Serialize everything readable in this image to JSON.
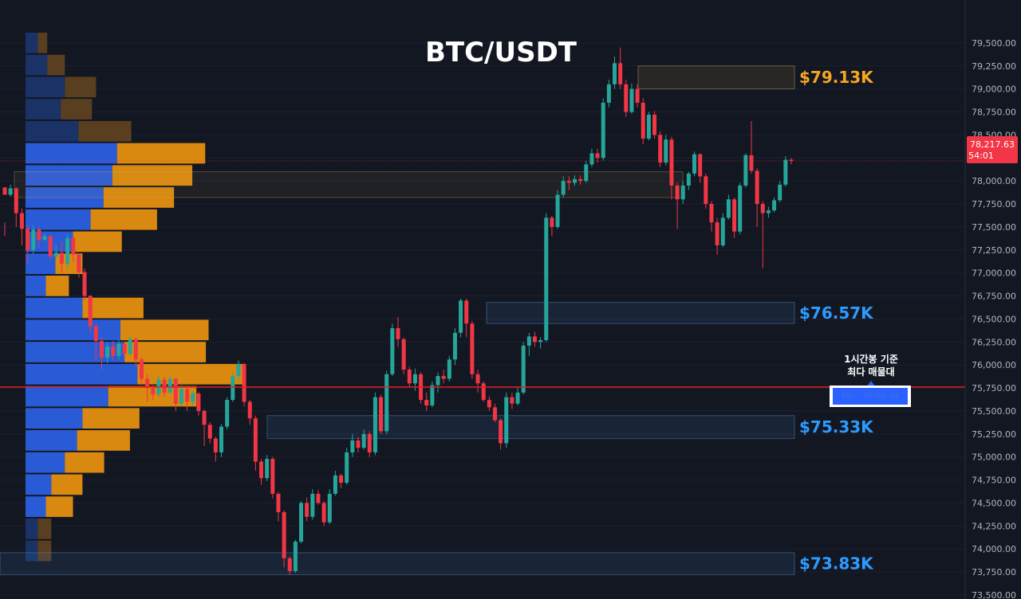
{
  "chart_data": {
    "type": "candlestick",
    "title": "BTC/USDT",
    "timeframe_note": [
      "1시간봉 기준",
      "최다 매물대"
    ],
    "poc_label": "POC: 75760.24",
    "poc_price": 75760,
    "current_price_label": "78,217.63",
    "countdown_label": "54:01",
    "current_price": 78217.63,
    "ylim": [
      73500,
      79750
    ],
    "y_ticks": [
      "79,500.00",
      "79,250.00",
      "79,000.00",
      "78,750.00",
      "78,500.00",
      "78,250.00",
      "78,000.00",
      "77,750.00",
      "77,500.00",
      "77,250.00",
      "77,000.00",
      "76,750.00",
      "76,500.00",
      "76,250.00",
      "76,000.00",
      "75,750.00",
      "75,500.00",
      "75,250.00",
      "75,000.00",
      "74,750.00",
      "74,500.00",
      "74,250.00",
      "74,000.00",
      "73,750.00",
      "73,500.00"
    ],
    "levels": [
      {
        "label": "$79.13K",
        "color": "#f5a623",
        "top": 79250,
        "bottom": 79000
      },
      {
        "label": "$76.57K",
        "color": "#2e9bff",
        "top": 76680,
        "bottom": 76450
      },
      {
        "label": "$75.33K",
        "color": "#2e9bff",
        "top": 75450,
        "bottom": 75200
      },
      {
        "label": "$73.83K",
        "color": "#2e9bff",
        "top": 73960,
        "bottom": 73720
      }
    ],
    "volume_profile": {
      "bin_size": 240,
      "bins_top_down": [
        {
          "price": 79500,
          "buy": 18,
          "sell": 14
        },
        {
          "price": 79260,
          "buy": 32,
          "sell": 26
        },
        {
          "price": 79020,
          "buy": 58,
          "sell": 46
        },
        {
          "price": 78780,
          "buy": 52,
          "sell": 46
        },
        {
          "price": 78540,
          "buy": 78,
          "sell": 78
        },
        {
          "price": 78300,
          "buy": 135,
          "sell": 130
        },
        {
          "price": 78060,
          "buy": 128,
          "sell": 118
        },
        {
          "price": 77820,
          "buy": 115,
          "sell": 104
        },
        {
          "price": 77580,
          "buy": 96,
          "sell": 98
        },
        {
          "price": 77340,
          "buy": 70,
          "sell": 72
        },
        {
          "price": 77100,
          "buy": 44,
          "sell": 40
        },
        {
          "price": 76860,
          "buy": 30,
          "sell": 34
        },
        {
          "price": 76620,
          "buy": 84,
          "sell": 90
        },
        {
          "price": 76380,
          "buy": 140,
          "sell": 130
        },
        {
          "price": 76140,
          "buy": 146,
          "sell": 120
        },
        {
          "price": 75900,
          "buy": 165,
          "sell": 158
        },
        {
          "price": 75660,
          "buy": 122,
          "sell": 130
        },
        {
          "price": 75420,
          "buy": 84,
          "sell": 84
        },
        {
          "price": 75180,
          "buy": 76,
          "sell": 78
        },
        {
          "price": 74940,
          "buy": 58,
          "sell": 58
        },
        {
          "price": 74700,
          "buy": 38,
          "sell": 46
        },
        {
          "price": 74460,
          "buy": 30,
          "sell": 40
        },
        {
          "price": 74220,
          "buy": 18,
          "sell": 20
        },
        {
          "price": 73980,
          "buy": 18,
          "sell": 20
        }
      ]
    },
    "candles": [
      [
        77930,
        77850,
        77550,
        77400
      ],
      [
        77850,
        77920,
        77960,
        77830
      ],
      [
        77920,
        77650,
        77930,
        77500
      ],
      [
        77650,
        77480,
        77700,
        77300
      ],
      [
        77480,
        77250,
        77520,
        77100
      ],
      [
        77250,
        77470,
        77520,
        77210
      ],
      [
        77470,
        77360,
        77500,
        77280
      ],
      [
        77360,
        77400,
        77430,
        77350
      ],
      [
        77400,
        77180,
        77410,
        77150
      ],
      [
        77180,
        77220,
        77300,
        77160
      ],
      [
        77220,
        77100,
        77340,
        77000
      ],
      [
        77100,
        77380,
        77420,
        77050
      ],
      [
        77380,
        77200,
        77390,
        77120
      ],
      [
        77200,
        77010,
        77210,
        76950
      ],
      [
        77010,
        76750,
        77050,
        76700
      ],
      [
        76750,
        76420,
        76760,
        76350
      ],
      [
        76420,
        76260,
        76450,
        76050
      ],
      [
        76260,
        76080,
        76300,
        75950
      ],
      [
        76080,
        76200,
        76250,
        76020
      ],
      [
        76200,
        76100,
        76260,
        76050
      ],
      [
        76100,
        76230,
        76270,
        76060
      ],
      [
        76230,
        76120,
        76250,
        76080
      ],
      [
        76120,
        76280,
        76310,
        76100
      ],
      [
        76280,
        76060,
        76300,
        75980
      ],
      [
        76060,
        75850,
        76080,
        75800
      ],
      [
        75850,
        75750,
        75900,
        75600
      ],
      [
        75750,
        75680,
        75780,
        75620
      ],
      [
        75680,
        75840,
        75880,
        75650
      ],
      [
        75840,
        75700,
        75870,
        75650
      ],
      [
        75700,
        75850,
        75880,
        75690
      ],
      [
        75850,
        75580,
        75860,
        75500
      ],
      [
        75580,
        75740,
        75780,
        75550
      ],
      [
        75740,
        75600,
        75760,
        75500
      ],
      [
        75600,
        75690,
        75720,
        75560
      ],
      [
        75690,
        75500,
        75710,
        75450
      ],
      [
        75500,
        75350,
        75520,
        75120
      ],
      [
        75350,
        75200,
        75380,
        75150
      ],
      [
        75200,
        75050,
        75220,
        74950
      ],
      [
        75050,
        75330,
        75360,
        75000
      ],
      [
        75330,
        75620,
        75650,
        75300
      ],
      [
        75620,
        75880,
        75920,
        75600
      ],
      [
        75880,
        76010,
        76050,
        75820
      ],
      [
        76010,
        75600,
        76020,
        75550
      ],
      [
        75600,
        75420,
        75620,
        75350
      ],
      [
        75420,
        74950,
        75450,
        74850
      ],
      [
        74950,
        74770,
        74980,
        74700
      ],
      [
        74770,
        74980,
        75020,
        74740
      ],
      [
        74980,
        74600,
        75000,
        74550
      ],
      [
        74600,
        74400,
        74620,
        74300
      ],
      [
        74400,
        73900,
        74420,
        73800
      ],
      [
        73900,
        73760,
        73920,
        73720
      ],
      [
        73760,
        74080,
        74100,
        73740
      ],
      [
        74080,
        74500,
        74520,
        74060
      ],
      [
        74500,
        74350,
        74560,
        74300
      ],
      [
        74350,
        74600,
        74650,
        74320
      ],
      [
        74600,
        74500,
        74640,
        74480
      ],
      [
        74500,
        74290,
        74520,
        74250
      ],
      [
        74290,
        74600,
        74650,
        74270
      ],
      [
        74600,
        74800,
        74850,
        74580
      ],
      [
        74800,
        74720,
        74820,
        74660
      ],
      [
        74720,
        75050,
        75100,
        74700
      ],
      [
        75050,
        75180,
        75250,
        75000
      ],
      [
        75180,
        75100,
        75220,
        75050
      ],
      [
        75100,
        75250,
        75300,
        75080
      ],
      [
        75250,
        75050,
        75280,
        75000
      ],
      [
        75050,
        75650,
        75700,
        75020
      ],
      [
        75650,
        75280,
        75680,
        75250
      ],
      [
        75280,
        75900,
        75940,
        75250
      ],
      [
        75900,
        76400,
        76450,
        75880
      ],
      [
        76400,
        76280,
        76520,
        76200
      ],
      [
        76280,
        75950,
        76300,
        75900
      ],
      [
        75950,
        75800,
        75980,
        75760
      ],
      [
        75800,
        75900,
        75960,
        75720
      ],
      [
        75900,
        75620,
        75920,
        75580
      ],
      [
        75620,
        75560,
        75700,
        75500
      ],
      [
        75560,
        75780,
        75820,
        75540
      ],
      [
        75780,
        75880,
        75920,
        75700
      ],
      [
        75880,
        75850,
        75950,
        75800
      ],
      [
        75850,
        76060,
        76100,
        75820
      ],
      [
        76060,
        76350,
        76400,
        76000
      ],
      [
        76350,
        76700,
        76720,
        76300
      ],
      [
        76700,
        76450,
        76720,
        76300
      ],
      [
        76450,
        75900,
        76480,
        75850
      ],
      [
        75900,
        75800,
        75950,
        75700
      ],
      [
        75800,
        75620,
        75820,
        75600
      ],
      [
        75620,
        75540,
        75660,
        75500
      ],
      [
        75540,
        75400,
        75580,
        75380
      ],
      [
        75400,
        75150,
        75420,
        75080
      ],
      [
        75150,
        75650,
        75700,
        75100
      ],
      [
        75650,
        75580,
        75700,
        75520
      ],
      [
        75580,
        75700,
        75760,
        75560
      ],
      [
        75700,
        76210,
        76250,
        75680
      ],
      [
        76210,
        76310,
        76350,
        76100
      ],
      [
        76310,
        76250,
        76360,
        76200
      ],
      [
        76250,
        76270,
        76300,
        76180
      ],
      [
        76270,
        77600,
        77650,
        76250
      ],
      [
        77600,
        77500,
        77620,
        77400
      ],
      [
        77500,
        77850,
        77900,
        77480
      ],
      [
        77850,
        78000,
        78050,
        77820
      ],
      [
        78000,
        77980,
        78050,
        77900
      ],
      [
        77980,
        78020,
        78060,
        77950
      ],
      [
        78020,
        78000,
        78060,
        77960
      ],
      [
        78000,
        78180,
        78220,
        77980
      ],
      [
        78180,
        78300,
        78350,
        78150
      ],
      [
        78300,
        78250,
        78350,
        78200
      ],
      [
        78250,
        78850,
        78900,
        78220
      ],
      [
        78850,
        79050,
        79100,
        78800
      ],
      [
        79050,
        79280,
        79350,
        79000
      ],
      [
        79280,
        79050,
        79450,
        79000
      ],
      [
        79050,
        78750,
        79100,
        78700
      ],
      [
        78750,
        79000,
        79060,
        78730
      ],
      [
        79000,
        78850,
        79050,
        78800
      ],
      [
        78850,
        78460,
        78900,
        78400
      ],
      [
        78460,
        78720,
        78750,
        78440
      ],
      [
        78720,
        78500,
        78760,
        78460
      ],
      [
        78500,
        78200,
        78540,
        78150
      ],
      [
        78200,
        78450,
        78500,
        78170
      ],
      [
        78450,
        77950,
        78480,
        77800
      ],
      [
        77950,
        77800,
        77980,
        77480
      ],
      [
        77800,
        77950,
        78000,
        77750
      ],
      [
        77950,
        78080,
        78100,
        77900
      ],
      [
        78080,
        78290,
        78320,
        78050
      ],
      [
        78290,
        78050,
        78300,
        77980
      ],
      [
        78050,
        77750,
        78080,
        77700
      ],
      [
        77750,
        77550,
        77780,
        77450
      ],
      [
        77550,
        77300,
        77600,
        77200
      ],
      [
        77300,
        77600,
        77650,
        77280
      ],
      [
        77600,
        77800,
        77850,
        77580
      ],
      [
        77800,
        77450,
        77820,
        77380
      ],
      [
        77450,
        77950,
        77980,
        77420
      ],
      [
        77950,
        78280,
        78300,
        77930
      ],
      [
        78280,
        78110,
        78650,
        78080
      ],
      [
        78110,
        77750,
        78140,
        77500
      ],
      [
        77750,
        77650,
        77780,
        77050
      ],
      [
        77650,
        77680,
        77720,
        77600
      ],
      [
        77680,
        77790,
        77820,
        77660
      ],
      [
        77790,
        77960,
        78000,
        77770
      ],
      [
        77960,
        78230,
        78270,
        77940
      ],
      [
        78230,
        78217,
        78250,
        78180
      ]
    ]
  }
}
